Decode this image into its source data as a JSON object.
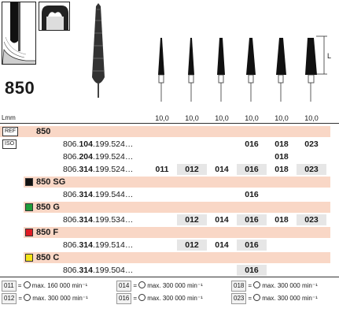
{
  "model": "850",
  "dimension_label": "L",
  "header": {
    "lmm_label": "Lmm",
    "lengths": [
      "10,0",
      "10,0",
      "10,0",
      "10,0",
      "10,0",
      "10,0"
    ]
  },
  "ref_label": "REF",
  "iso_label": "ISO",
  "ref_value": "850",
  "iso_rows": [
    {
      "prefix": "806.",
      "mid": "104",
      "suffix": ".199.524…",
      "sizes": [
        "",
        "",
        "",
        "016",
        "018",
        "023"
      ]
    },
    {
      "prefix": "806.",
      "mid": "204",
      "suffix": ".199.524…",
      "sizes": [
        "",
        "",
        "",
        "",
        "018",
        ""
      ]
    },
    {
      "prefix": "806.",
      "mid": "314",
      "suffix": ".199.524…",
      "sizes": [
        "011",
        "012",
        "014",
        "016",
        "018",
        "023"
      ]
    }
  ],
  "groups": [
    {
      "name": "850 SG",
      "color": "#111111",
      "row": {
        "prefix": "806.",
        "mid": "314",
        "suffix": ".199.544…",
        "sizes": [
          "",
          "",
          "",
          "016",
          "",
          ""
        ]
      }
    },
    {
      "name": "850 G",
      "color": "#1e9e3a",
      "row": {
        "prefix": "806.",
        "mid": "314",
        "suffix": ".199.534…",
        "sizes": [
          "",
          "012",
          "014",
          "016",
          "018",
          "023"
        ]
      }
    },
    {
      "name": "850 F",
      "color": "#e01b24",
      "row": {
        "prefix": "806.",
        "mid": "314",
        "suffix": ".199.514…",
        "sizes": [
          "",
          "012",
          "014",
          "016",
          "",
          ""
        ]
      }
    },
    {
      "name": "850 C",
      "color": "#f5e416",
      "row": {
        "prefix": "806.",
        "mid": "314",
        "suffix": ".199.504…",
        "sizes": [
          "",
          "",
          "",
          "016",
          "",
          ""
        ]
      }
    }
  ],
  "legend": [
    {
      "size": "011",
      "text": "max. 160 000 min⁻¹"
    },
    {
      "size": "014",
      "text": "max. 300 000 min⁻¹"
    },
    {
      "size": "018",
      "text": "max. 300 000 min⁻¹"
    },
    {
      "size": "012",
      "text": "max. 300 000 min⁻¹"
    },
    {
      "size": "016",
      "text": "max. 300 000 min⁻¹"
    },
    {
      "size": "023",
      "text": "max. 300 000 min⁻¹"
    }
  ],
  "colors": {
    "band": "#f9d7c6",
    "shade": "#e6e6e6"
  },
  "icons": [
    "cross-section-icon",
    "tooth-prep-icon",
    "long-bur-icon",
    "bur-icon",
    "rotation-icon",
    "length-dimension-icon"
  ]
}
